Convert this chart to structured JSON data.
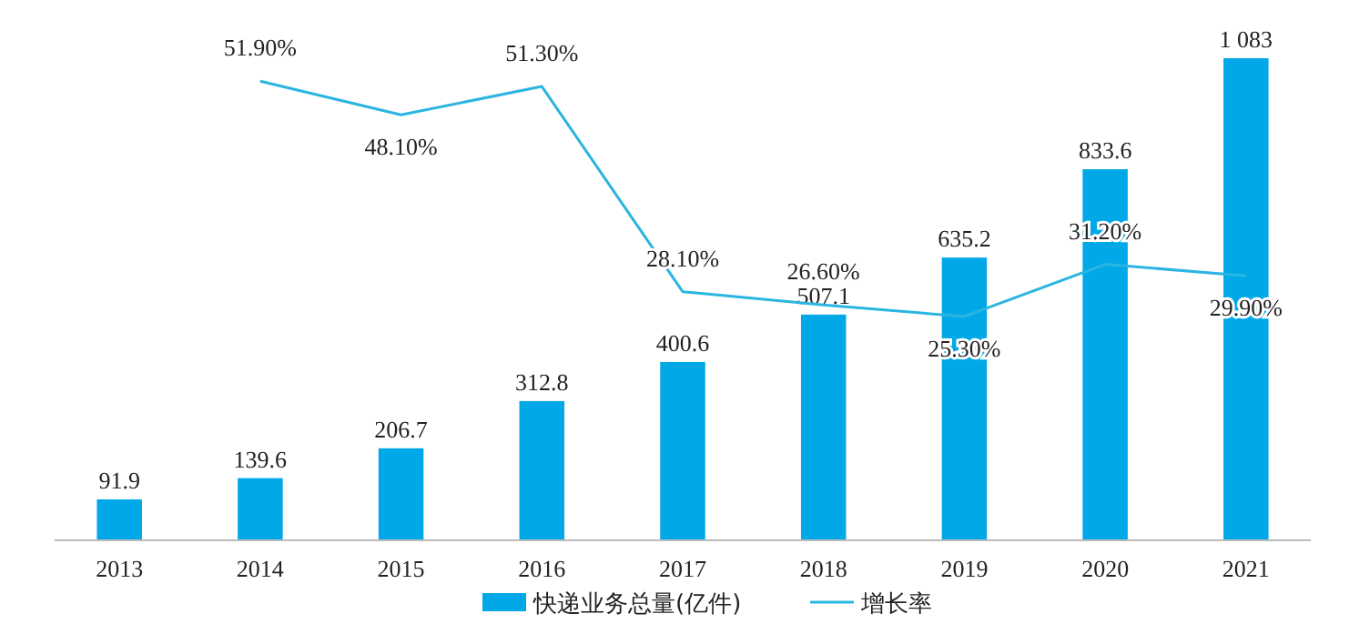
{
  "chart_data": {
    "type": "bar",
    "categories": [
      "2013",
      "2014",
      "2015",
      "2016",
      "2017",
      "2018",
      "2019",
      "2020",
      "2021"
    ],
    "series": [
      {
        "name": "快递业务总量(亿件)",
        "color": "#00a8e8",
        "values": [
          91.9,
          139.6,
          206.7,
          312.8,
          400.6,
          507.1,
          635.2,
          833.6,
          1083
        ],
        "value_labels": [
          "91.9",
          "139.6",
          "206.7",
          "312.8",
          "400.6",
          "507.1",
          "635.2",
          "833.6",
          "1 083"
        ]
      },
      {
        "name": "增长率",
        "type": "line",
        "axis": "y2",
        "color": "#2bb5e0",
        "values": [
          null,
          51.9,
          48.1,
          51.3,
          28.1,
          26.6,
          25.3,
          31.2,
          29.9
        ],
        "value_labels": [
          null,
          "51.90%",
          "48.10%",
          "51.30%",
          "28.10%",
          "26.60%",
          "25.30%",
          "31.20%",
          "29.90%"
        ]
      }
    ],
    "legend": "bottom"
  }
}
